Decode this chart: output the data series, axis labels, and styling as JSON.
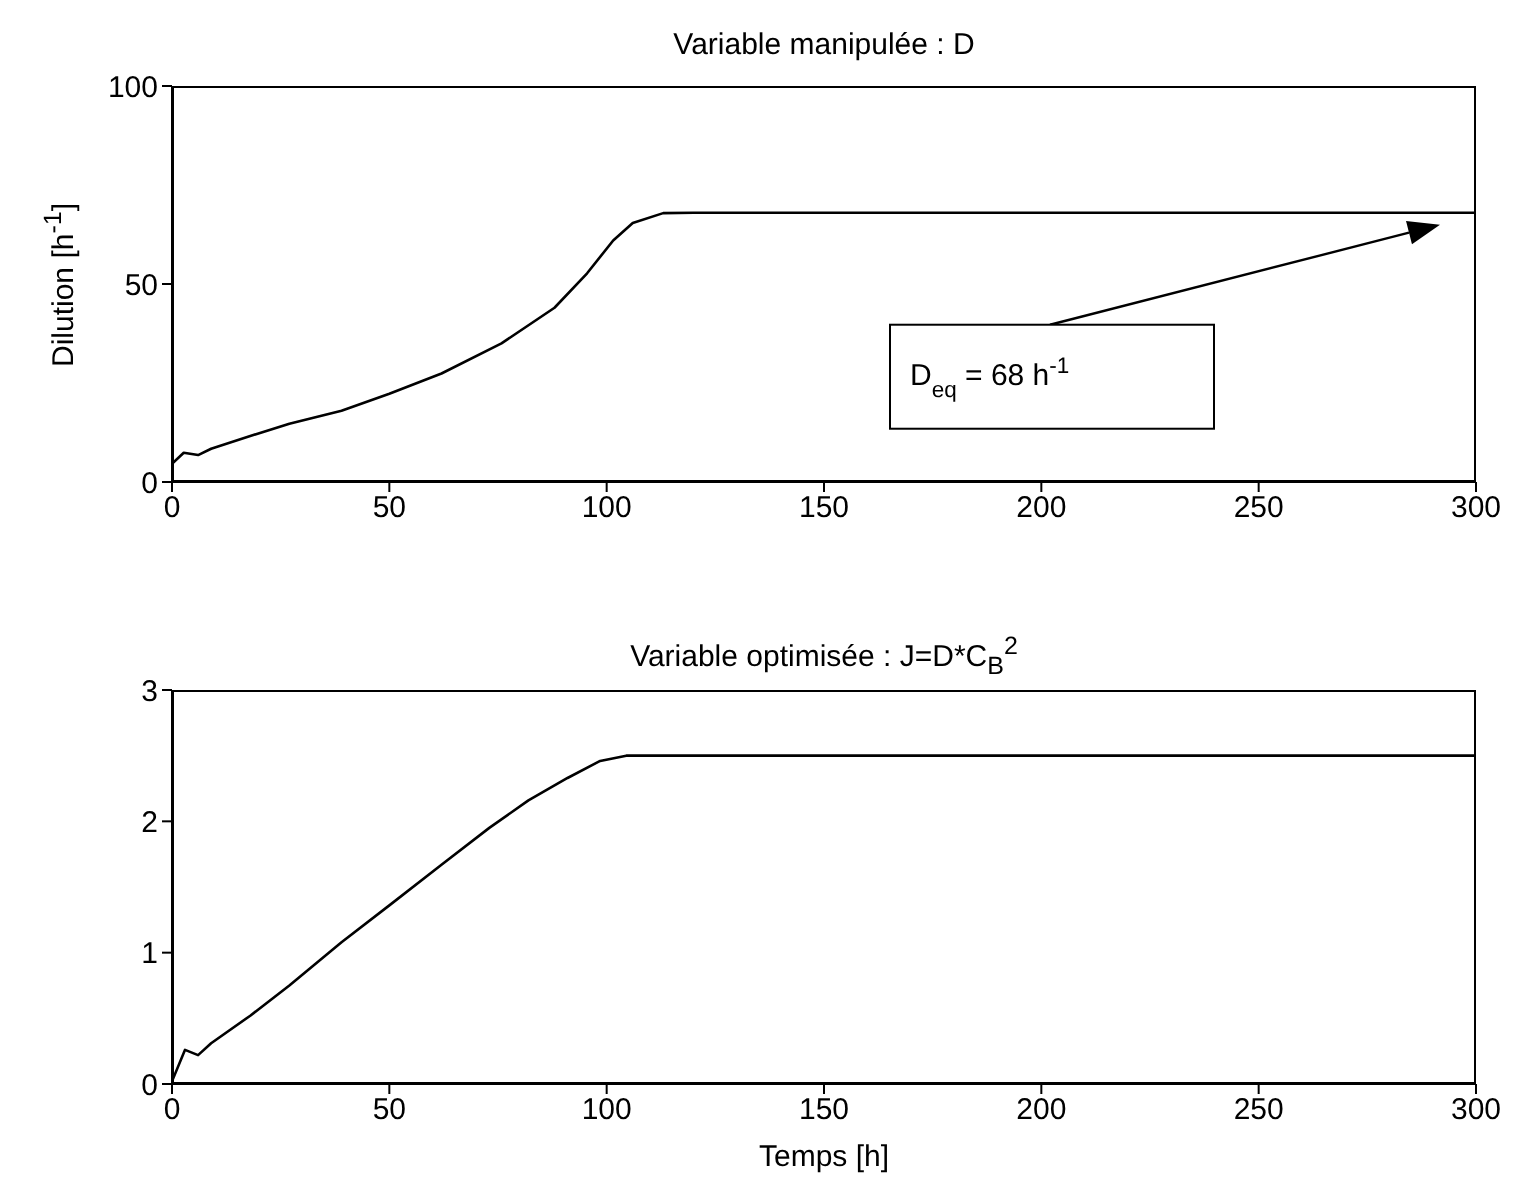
{
  "chart_data": [
    {
      "type": "line",
      "title": "Variable manipulée : D",
      "ylabel": "Dilution [h$^{-1}$]",
      "x": [
        0,
        2.7,
        6,
        9,
        19.7,
        27,
        39,
        50,
        62,
        75.8,
        88,
        95.5,
        101.5,
        106,
        113,
        120,
        150,
        200,
        250,
        300
      ],
      "series": [
        {
          "color": "#000000",
          "values": [
            4.6,
            7.4,
            6.8,
            8.4,
            12.2,
            14.7,
            18,
            22.3,
            27.4,
            35,
            44,
            52.7,
            61,
            65.4,
            67.9,
            68,
            68,
            68,
            68,
            68
          ]
        }
      ],
      "xlim": [
        0,
        300
      ],
      "xticks": [
        0,
        50,
        100,
        150,
        200,
        250,
        300
      ],
      "ylim": [
        0,
        100
      ],
      "yticks": [
        0,
        50,
        100
      ],
      "annotations": [
        "D$_{eq}$ = 68 h$^{-1}$"
      ],
      "grid": false,
      "legend": false,
      "marker": "none",
      "line_style": "solid"
    },
    {
      "type": "line",
      "title": "Variable optimisée : J=D*C$_{B}$$^{2}$",
      "xlabel": "Temps [h]",
      "x": [
        0,
        3,
        6,
        9,
        18,
        27,
        39,
        50,
        62,
        73,
        82,
        91,
        98.5,
        104.5,
        110,
        150,
        200,
        250,
        300
      ],
      "series": [
        {
          "color": "#000000",
          "values": [
            0.02,
            0.26,
            0.22,
            0.31,
            0.52,
            0.75,
            1.08,
            1.36,
            1.67,
            1.95,
            2.16,
            2.33,
            2.46,
            2.5,
            2.5,
            2.5,
            2.5,
            2.5,
            2.5
          ]
        }
      ],
      "xlim": [
        0,
        300
      ],
      "xticks": [
        0,
        50,
        100,
        150,
        200,
        250,
        300
      ],
      "ylim": [
        0,
        3
      ],
      "yticks": [
        0,
        1,
        2,
        3
      ],
      "grid": false,
      "legend": false,
      "marker": "none",
      "line_style": "solid"
    }
  ]
}
